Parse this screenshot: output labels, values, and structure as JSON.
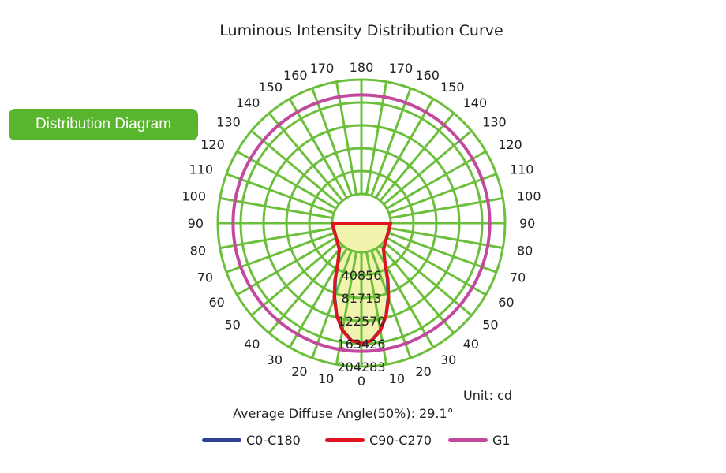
{
  "header": {
    "title": "Luminous Intensity Distribution Curve"
  },
  "badge": {
    "label": "Distribution Diagram"
  },
  "footer": {
    "unit": "Unit: cd",
    "average_angle": "Average Diffuse Angle(50%): 29.1°"
  },
  "colors": {
    "grid": "#6bbf3a",
    "c0": "#2b3f97",
    "c90": "#e0141c",
    "g1": "#c24a9e",
    "fill": "#f3f3b0",
    "badge": "#5ab52e"
  },
  "chart_data": {
    "type": "polar",
    "title": "Luminous Intensity Distribution Curve",
    "unit": "cd",
    "radial_ticks": [
      "40856",
      "81713",
      "122570",
      "163426",
      "204283"
    ],
    "radial_values": [
      40856,
      81713,
      122570,
      163426,
      204283
    ],
    "angle_ticks_left": [
      "0",
      "10",
      "20",
      "30",
      "40",
      "50",
      "60",
      "70",
      "80",
      "90",
      "100",
      "110",
      "120",
      "130",
      "140",
      "150",
      "160",
      "170",
      "180"
    ],
    "angle_ticks_right": [
      "0",
      "10",
      "20",
      "30",
      "40",
      "50",
      "60",
      "70",
      "80",
      "90",
      "100",
      "110",
      "120",
      "130",
      "140",
      "150",
      "160",
      "170",
      "180"
    ],
    "series": [
      {
        "name": "C0-C180",
        "color": "#2b3f97",
        "angles": [
          0,
          5,
          10,
          15,
          20,
          25,
          30,
          40,
          60,
          90
        ],
        "values": [
          163426,
          158000,
          142000,
          118000,
          88000,
          58000,
          32000,
          9000,
          0,
          0
        ]
      },
      {
        "name": "C90-C270",
        "color": "#e0141c",
        "angles": [
          0,
          5,
          10,
          15,
          20,
          25,
          30,
          40,
          60,
          90
        ],
        "values": [
          163426,
          158500,
          143000,
          119000,
          90000,
          60000,
          33000,
          9500,
          0,
          0
        ]
      },
      {
        "name": "G1",
        "color": "#c24a9e",
        "angles": [
          0,
          30,
          60,
          90,
          120,
          150,
          180
        ],
        "values": [
          177000,
          177000,
          177000,
          177000,
          177000,
          177000,
          177000
        ]
      }
    ],
    "legend": [
      "C0-C180",
      "C90-C270",
      "G1"
    ],
    "average_diffuse_angle_50": 29.1
  }
}
